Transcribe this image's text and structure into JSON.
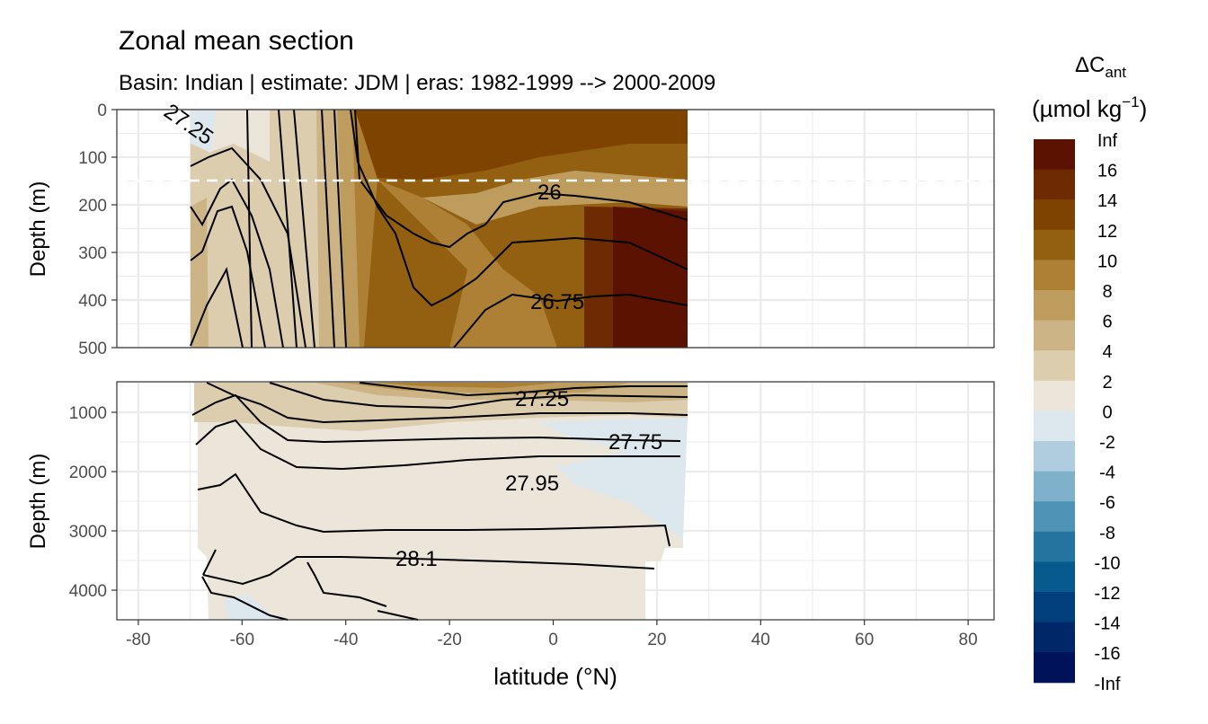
{
  "chart_data": {
    "type": "heatmap",
    "title": "Zonal mean section",
    "subtitle": "Basin: Indian | estimate: JDM  | eras: 1982-1999 --> 2000-2009",
    "xlabel": "latitude (°N)",
    "ylabel": "Depth (m)",
    "xlim": [
      -85,
      85
    ],
    "x_ticks": [
      "-80",
      "-60",
      "-40",
      "-20",
      "0",
      "20",
      "40",
      "60",
      "80"
    ],
    "panels": [
      {
        "ylim": [
          0,
          500
        ],
        "y_ticks": [
          "0",
          "100",
          "200",
          "300",
          "400",
          "500"
        ],
        "y_tick_values": [
          0,
          100,
          200,
          300,
          400,
          500
        ],
        "reference_line_depth": 150,
        "contour_labels": [
          "27.25",
          "26",
          "26.75"
        ]
      },
      {
        "ylim": [
          500,
          4500
        ],
        "y_ticks": [
          "1000",
          "2000",
          "3000",
          "4000"
        ],
        "y_tick_values": [
          1000,
          2000,
          3000,
          4000
        ],
        "contour_labels": [
          "27.25",
          "27.75",
          "27.95",
          "28.1"
        ]
      }
    ],
    "data_extent_lat": [
      -70,
      25
    ],
    "legend": {
      "title_main": "ΔC",
      "title_sub": "ant",
      "units": "(µmol kg",
      "units_exp": "−1",
      "units_close": ")",
      "placement": "right",
      "labels": [
        "Inf",
        "16",
        "14",
        "12",
        "10",
        "8",
        "6",
        "4",
        "2",
        "0",
        "-2",
        "-4",
        "-6",
        "-8",
        "-10",
        "-12",
        "-14",
        "-16",
        "-Inf"
      ],
      "colors": [
        "#5c1200",
        "#6e2a00",
        "#7f4300",
        "#935f10",
        "#ad8035",
        "#be9c5e",
        "#ccb486",
        "#ddcdaf",
        "#ece6da",
        "#dde8ee",
        "#b0cde0",
        "#80b1cb",
        "#4f94b6",
        "#2574a0",
        "#065a8e",
        "#003e7c",
        "#002868",
        "#00135a"
      ]
    },
    "grid": true
  }
}
